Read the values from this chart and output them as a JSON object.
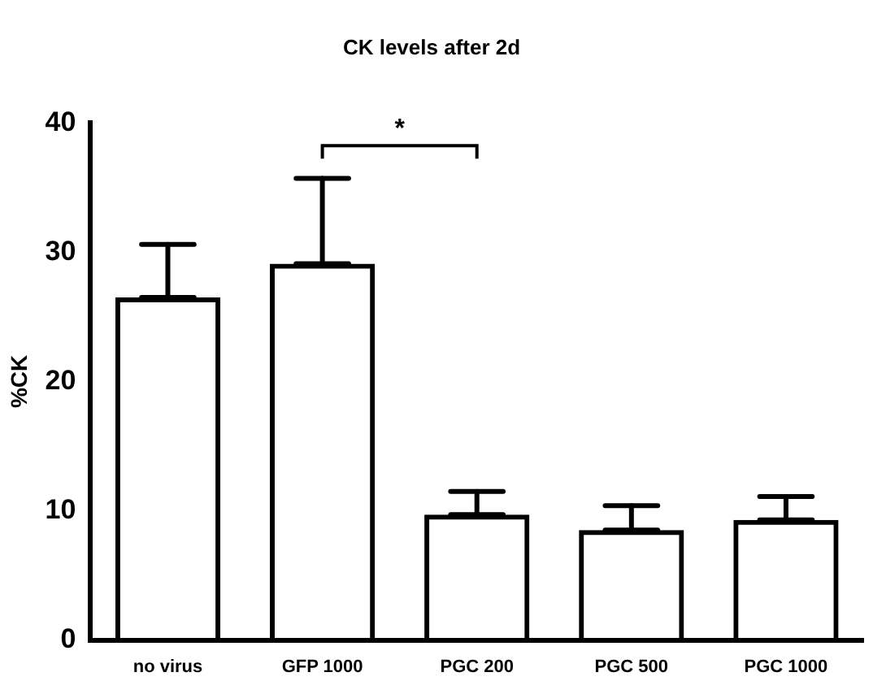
{
  "chart_data": {
    "type": "bar",
    "title": "CK levels after 2d",
    "ylabel": "%CK",
    "categories": [
      "no virus",
      "GFP 1000",
      "PGC 200",
      "PGC 500",
      "PGC 1000"
    ],
    "values": [
      26.5,
      29.1,
      9.7,
      8.5,
      9.3
    ],
    "errors": [
      [
        26.5,
        30.6
      ],
      [
        29.1,
        35.7
      ],
      [
        9.7,
        11.5
      ],
      [
        8.5,
        10.4
      ],
      [
        9.3,
        11.1
      ]
    ],
    "color": "#000000",
    "ylim": [
      0,
      40
    ],
    "yticks": [
      0,
      10,
      20,
      30,
      40
    ],
    "grid": false,
    "annotations": [
      "*"
    ]
  }
}
